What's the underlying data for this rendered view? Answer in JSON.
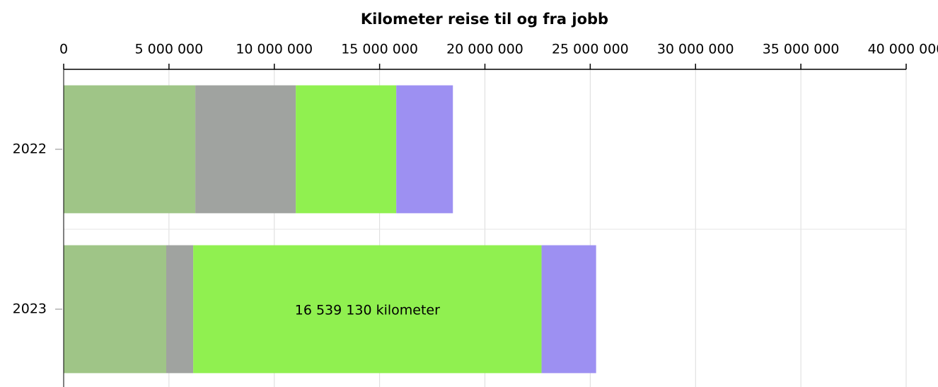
{
  "chart_data": {
    "type": "bar",
    "orientation": "horizontal",
    "stacked": true,
    "title": "Kilometer reise til og fra jobb",
    "categories": [
      "2022",
      "2023"
    ],
    "series": [
      {
        "color": "#9fc587",
        "values": [
          6250000,
          4870000
        ]
      },
      {
        "color": "#a0a3a0",
        "values": [
          4770000,
          1280000
        ]
      },
      {
        "color": "#90f050",
        "values": [
          4770000,
          16539130
        ],
        "value_labels": [
          null,
          "16 539 130 kilometer"
        ]
      },
      {
        "color": "#9d90f2",
        "values": [
          2690000,
          2590000
        ]
      }
    ],
    "xlim": [
      0,
      40000000
    ],
    "xticks": [
      0,
      {
        "value": 5000000,
        "label": "5 000 000"
      },
      {
        "value": 10000000,
        "label": "10 000 000"
      },
      {
        "value": 15000000,
        "label": "15 000 000"
      },
      {
        "value": 20000000,
        "label": "20 000 000"
      },
      {
        "value": 25000000,
        "label": "25 000 000"
      },
      {
        "value": 30000000,
        "label": "30 000 000"
      },
      {
        "value": 35000000,
        "label": "35 000 000"
      },
      {
        "value": 40000000,
        "label": "40 000 000"
      }
    ],
    "grid": true
  }
}
